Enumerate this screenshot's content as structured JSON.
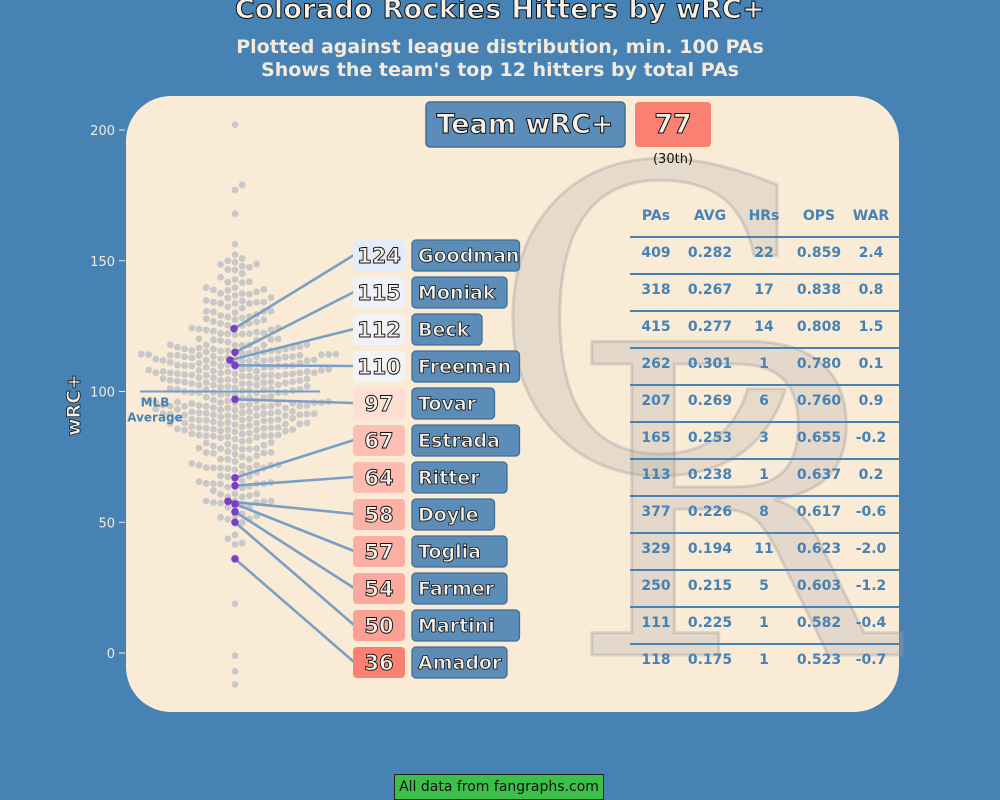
{
  "title": "Colorado Rockies Hitters by wRC+",
  "subtitle_1": "Plotted against league distribution, min. 100 PAs",
  "subtitle_2": "Shows the team's top 12 hitters by total PAs",
  "team_box": {
    "label": "Team wRC+",
    "value": "77",
    "rank": "(30th)"
  },
  "footer": "All data from fangraphs.com",
  "mlb_average_label": [
    "MLB",
    "Average"
  ],
  "logo_letters": [
    "C",
    "R"
  ],
  "colors": {
    "background": "#4682b4",
    "panel": "#faebd7",
    "name_box": "#5b8db8",
    "team_value_box": "#fa8072",
    "league_dot": "#c8c8c8",
    "player_dot": "#7b3fc4",
    "stat_text": "#4682b4"
  },
  "chart_data": {
    "type": "scatter",
    "ylabel": "wRC+",
    "ylim": [
      -14,
      210
    ],
    "yticks": [
      0,
      50,
      100,
      150,
      200
    ],
    "league_average": 100,
    "players": [
      {
        "name": "Goodman",
        "wrc": 124,
        "PAs": "409",
        "AVG": "0.282",
        "HRs": "22",
        "OPS": "0.859",
        "WAR": "2.4"
      },
      {
        "name": "Moniak",
        "wrc": 115,
        "PAs": "318",
        "AVG": "0.267",
        "HRs": "17",
        "OPS": "0.838",
        "WAR": "0.8"
      },
      {
        "name": "Beck",
        "wrc": 112,
        "PAs": "415",
        "AVG": "0.277",
        "HRs": "14",
        "OPS": "0.808",
        "WAR": "1.5"
      },
      {
        "name": "Freeman",
        "wrc": 110,
        "PAs": "262",
        "AVG": "0.301",
        "HRs": "1",
        "OPS": "0.780",
        "WAR": "0.1"
      },
      {
        "name": "Tovar",
        "wrc": 97,
        "PAs": "207",
        "AVG": "0.269",
        "HRs": "6",
        "OPS": "0.760",
        "WAR": "0.9"
      },
      {
        "name": "Estrada",
        "wrc": 67,
        "PAs": "165",
        "AVG": "0.253",
        "HRs": "3",
        "OPS": "0.655",
        "WAR": "-0.2"
      },
      {
        "name": "Ritter",
        "wrc": 64,
        "PAs": "113",
        "AVG": "0.238",
        "HRs": "1",
        "OPS": "0.637",
        "WAR": "0.2"
      },
      {
        "name": "Doyle",
        "wrc": 58,
        "PAs": "377",
        "AVG": "0.226",
        "HRs": "8",
        "OPS": "0.617",
        "WAR": "-0.6"
      },
      {
        "name": "Toglia",
        "wrc": 57,
        "PAs": "329",
        "AVG": "0.194",
        "HRs": "11",
        "OPS": "0.623",
        "WAR": "-2.0"
      },
      {
        "name": "Farmer",
        "wrc": 54,
        "PAs": "250",
        "AVG": "0.215",
        "HRs": "5",
        "OPS": "0.603",
        "WAR": "-1.2"
      },
      {
        "name": "Martini",
        "wrc": 50,
        "PAs": "111",
        "AVG": "0.225",
        "HRs": "1",
        "OPS": "0.582",
        "WAR": "-0.4"
      },
      {
        "name": "Amador",
        "wrc": 36,
        "PAs": "118",
        "AVG": "0.175",
        "HRs": "1",
        "OPS": "0.523",
        "WAR": "-0.7"
      }
    ],
    "table_columns": [
      "PAs",
      "AVG",
      "HRs",
      "OPS",
      "WAR"
    ]
  }
}
